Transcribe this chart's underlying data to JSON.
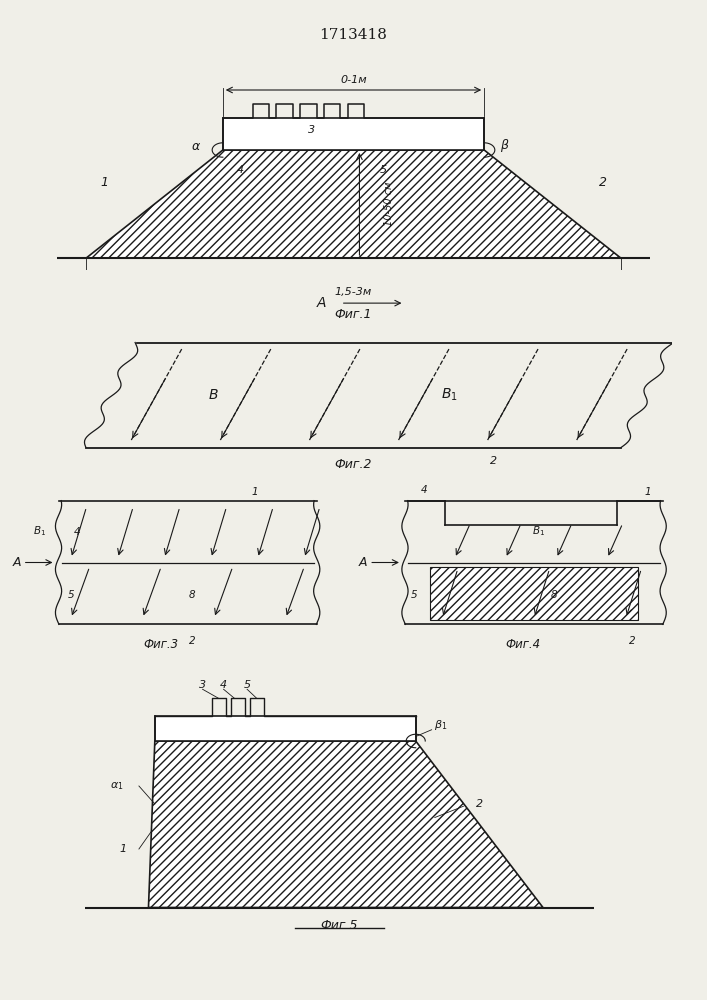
{
  "title": "1713418",
  "bg_color": "#f0efe8",
  "line_color": "#1a1a1a",
  "fig1_caption": "Фиг.1",
  "fig2_caption": "Фиг.2",
  "fig3_caption": "Фиг.3",
  "fig4_caption": "Фиг.4",
  "fig5_caption": "Фиг.5"
}
